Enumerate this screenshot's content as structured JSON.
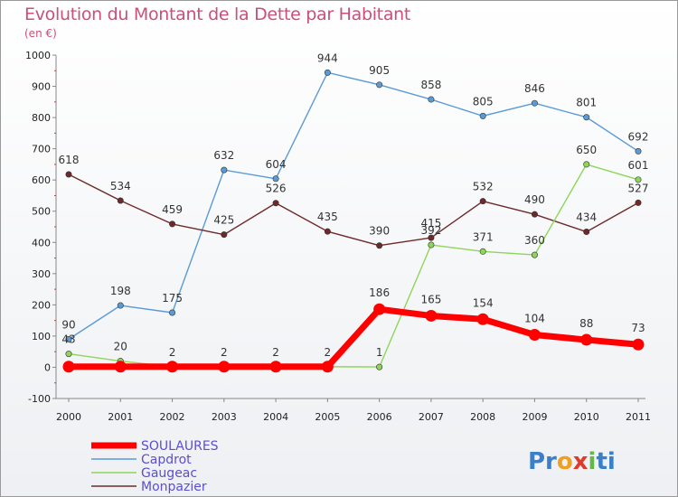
{
  "title": "Evolution du Montant de la Dette par Habitant",
  "unit": "(en €)",
  "brand": "Proxiti",
  "chart_data": {
    "type": "line",
    "title": "Evolution du Montant de la Dette par Habitant",
    "subtitle": "(en €)",
    "x": [
      "2000",
      "2001",
      "2002",
      "2003",
      "2004",
      "2005",
      "2006",
      "2007",
      "2008",
      "2009",
      "2010",
      "2011"
    ],
    "ylim": [
      -100,
      1000
    ],
    "yticks": [
      "-100",
      "0",
      "100",
      "200",
      "300",
      "400",
      "500",
      "600",
      "700",
      "800",
      "900",
      "1000"
    ],
    "grid": false,
    "legend_position": "bottom-left",
    "series": [
      {
        "name": "SOULAURES",
        "color": "#ff0000",
        "values": [
          2,
          2,
          2,
          2,
          2,
          2,
          186,
          165,
          154,
          104,
          88,
          73
        ],
        "labels": [
          "",
          "",
          "",
          "",
          "",
          "",
          "186",
          "165",
          "154",
          "104",
          "88",
          "73"
        ]
      },
      {
        "name": "Capdrot",
        "color": "#5b9bd5",
        "values": [
          90,
          198,
          175,
          632,
          604,
          944,
          905,
          858,
          805,
          846,
          801,
          692
        ],
        "labels": [
          "90",
          "198",
          "175",
          "632",
          "604",
          "944",
          "905",
          "858",
          "805",
          "846",
          "801",
          "692"
        ]
      },
      {
        "name": "Gaugeac",
        "color": "#8ed65a",
        "values": [
          43,
          20,
          2,
          2,
          2,
          2,
          1,
          392,
          371,
          360,
          650,
          601
        ],
        "labels": [
          "43",
          "20",
          "2",
          "2",
          "2",
          "2",
          "1",
          "392",
          "371",
          "360",
          "650",
          "601"
        ]
      },
      {
        "name": "Monpazier",
        "color": "#6e2a2a",
        "values": [
          618,
          534,
          459,
          425,
          526,
          435,
          390,
          415,
          532,
          490,
          434,
          527
        ],
        "labels": [
          "618",
          "534",
          "459",
          "425",
          "526",
          "435",
          "390",
          "415",
          "532",
          "490",
          "434",
          "527"
        ]
      }
    ]
  }
}
